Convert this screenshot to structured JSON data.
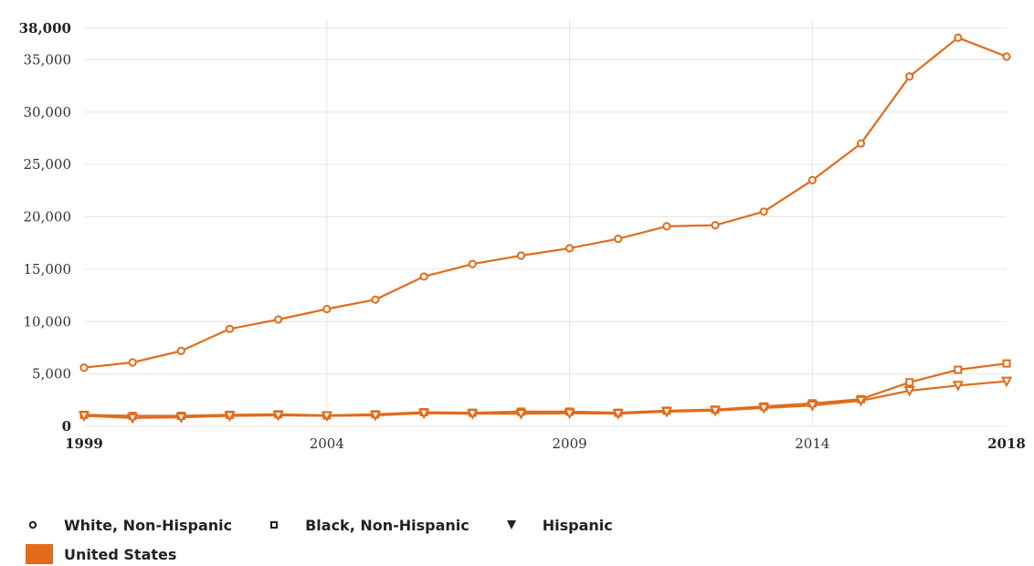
{
  "chart_data": {
    "type": "line",
    "x": [
      1999,
      2000,
      2001,
      2002,
      2003,
      2004,
      2005,
      2006,
      2007,
      2008,
      2009,
      2010,
      2011,
      2012,
      2013,
      2014,
      2015,
      2016,
      2017,
      2018
    ],
    "x_tick_labels": [
      "1999",
      "2004",
      "2009",
      "2014",
      "2018"
    ],
    "y_tick_labels": [
      "0",
      "5,000",
      "10,000",
      "15,000",
      "20,000",
      "25,000",
      "30,000",
      "35,000",
      "38,000"
    ],
    "ylim": [
      0,
      38000
    ],
    "xlim": [
      1999,
      2018
    ],
    "grid": true,
    "legend_position": "bottom-left",
    "color": "#e06c1b",
    "series": [
      {
        "name": "White, Non-Hispanic",
        "marker": "circle",
        "values": [
          5600,
          6100,
          7200,
          9300,
          10200,
          11200,
          12100,
          14300,
          15500,
          16300,
          17000,
          17900,
          19100,
          19200,
          20500,
          23500,
          27000,
          33400,
          37100,
          35300
        ]
      },
      {
        "name": "Black, Non-Hispanic",
        "marker": "square",
        "values": [
          1100,
          1000,
          1000,
          1100,
          1150,
          1050,
          1150,
          1350,
          1300,
          1400,
          1400,
          1300,
          1500,
          1600,
          1900,
          2200,
          2600,
          4200,
          5400,
          6000
        ]
      },
      {
        "name": "Hispanic",
        "marker": "triangle-down",
        "values": [
          1000,
          800,
          850,
          1000,
          1050,
          1000,
          1050,
          1250,
          1200,
          1200,
          1250,
          1200,
          1400,
          1500,
          1750,
          2000,
          2450,
          3400,
          3900,
          4300
        ]
      }
    ],
    "region_legend": "United States"
  }
}
